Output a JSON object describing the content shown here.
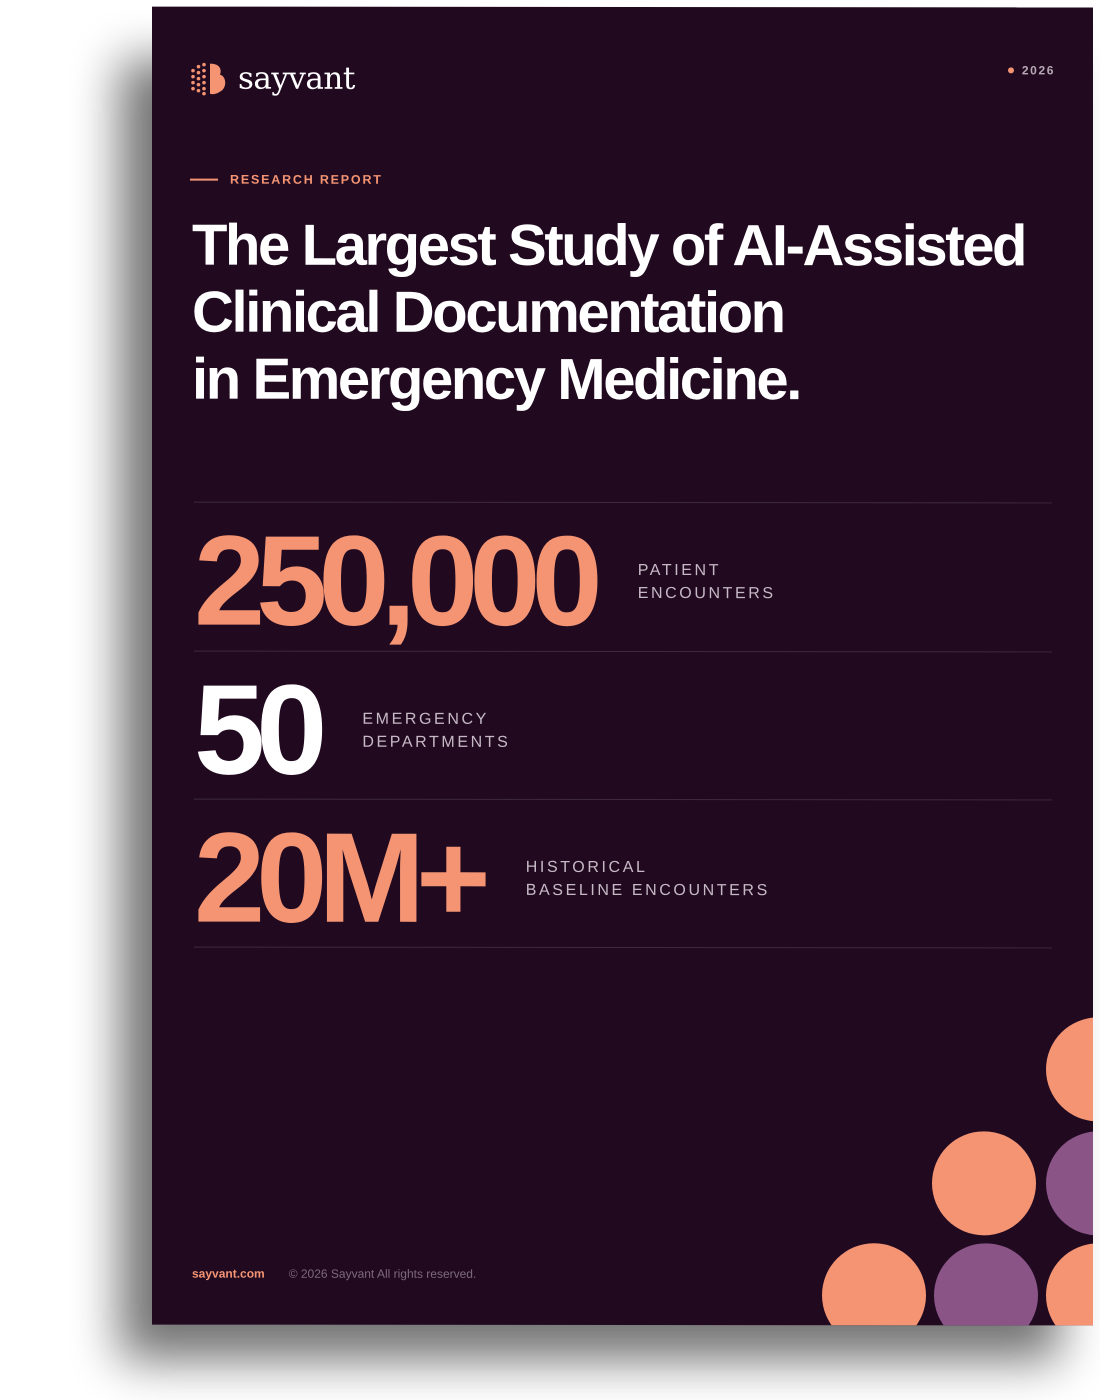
{
  "brand": {
    "name": "sayvant",
    "icon": "sayvant-logo-icon",
    "color_primary": "#f49473",
    "color_secondary": "#8a5487",
    "color_background": "#210a20"
  },
  "header": {
    "year": "2026"
  },
  "report": {
    "eyebrow": "RESEARCH REPORT",
    "title_lines": [
      "The Largest Study of AI-Assisted",
      "Clinical Documentation",
      "in Emergency Medicine."
    ]
  },
  "stats": [
    {
      "value": "250,000",
      "label_lines": [
        "PATIENT",
        "ENCOUNTERS"
      ],
      "color": "#f49473"
    },
    {
      "value": "50",
      "label_lines": [
        "EMERGENCY",
        "DEPARTMENTS"
      ],
      "color": "#ffffff"
    },
    {
      "value": "20M+",
      "label_lines": [
        "HISTORICAL",
        "BASELINE ENCOUNTERS"
      ],
      "color": "#f49473"
    }
  ],
  "footer": {
    "url": "sayvant.com",
    "copyright": "© 2026 Sayvant All rights reserved."
  }
}
